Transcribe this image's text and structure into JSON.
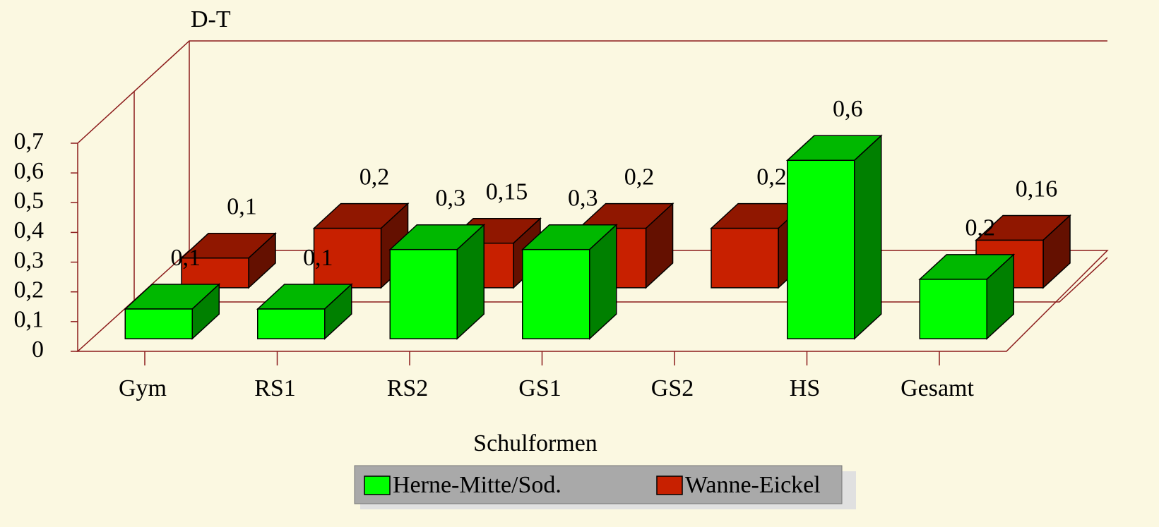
{
  "chart_data": {
    "type": "bar3d",
    "y_axis_label": "D-T",
    "x_axis_label": "Schulformen",
    "categories": [
      "Gym",
      "RS1",
      "RS2",
      "GS1",
      "GS2",
      "HS",
      "Gesamt"
    ],
    "series": [
      {
        "name": "Herne-Mitte/Sod.",
        "color": "#00ff00",
        "values": [
          0.1,
          0.1,
          0.3,
          0.3,
          null,
          0.6,
          0.2
        ],
        "value_labels": [
          "0,1",
          "0,1",
          "0,3",
          "0,3",
          null,
          "0,6",
          "0,2"
        ]
      },
      {
        "name": "Wanne-Eickel",
        "color": "#c82000",
        "values": [
          0.1,
          0.2,
          0.15,
          0.2,
          0.2,
          null,
          0.16
        ],
        "value_labels": [
          "0,1",
          "0,2",
          "0,15",
          "0,2",
          "0,2",
          null,
          "0,16"
        ]
      }
    ],
    "ylim": [
      0,
      0.7
    ],
    "yticks": [
      0,
      {
        "value": 0.1,
        "label": "0,1"
      },
      {
        "value": 0.2,
        "label": "0,2"
      },
      {
        "value": 0.3,
        "label": "0,3"
      },
      {
        "value": 0.4,
        "label": "0,4"
      },
      {
        "value": 0.5,
        "label": "0,5"
      },
      {
        "value": 0.6,
        "label": "0,6"
      },
      {
        "value": 0.7,
        "label": "0,7"
      }
    ],
    "legend": "bottom"
  }
}
